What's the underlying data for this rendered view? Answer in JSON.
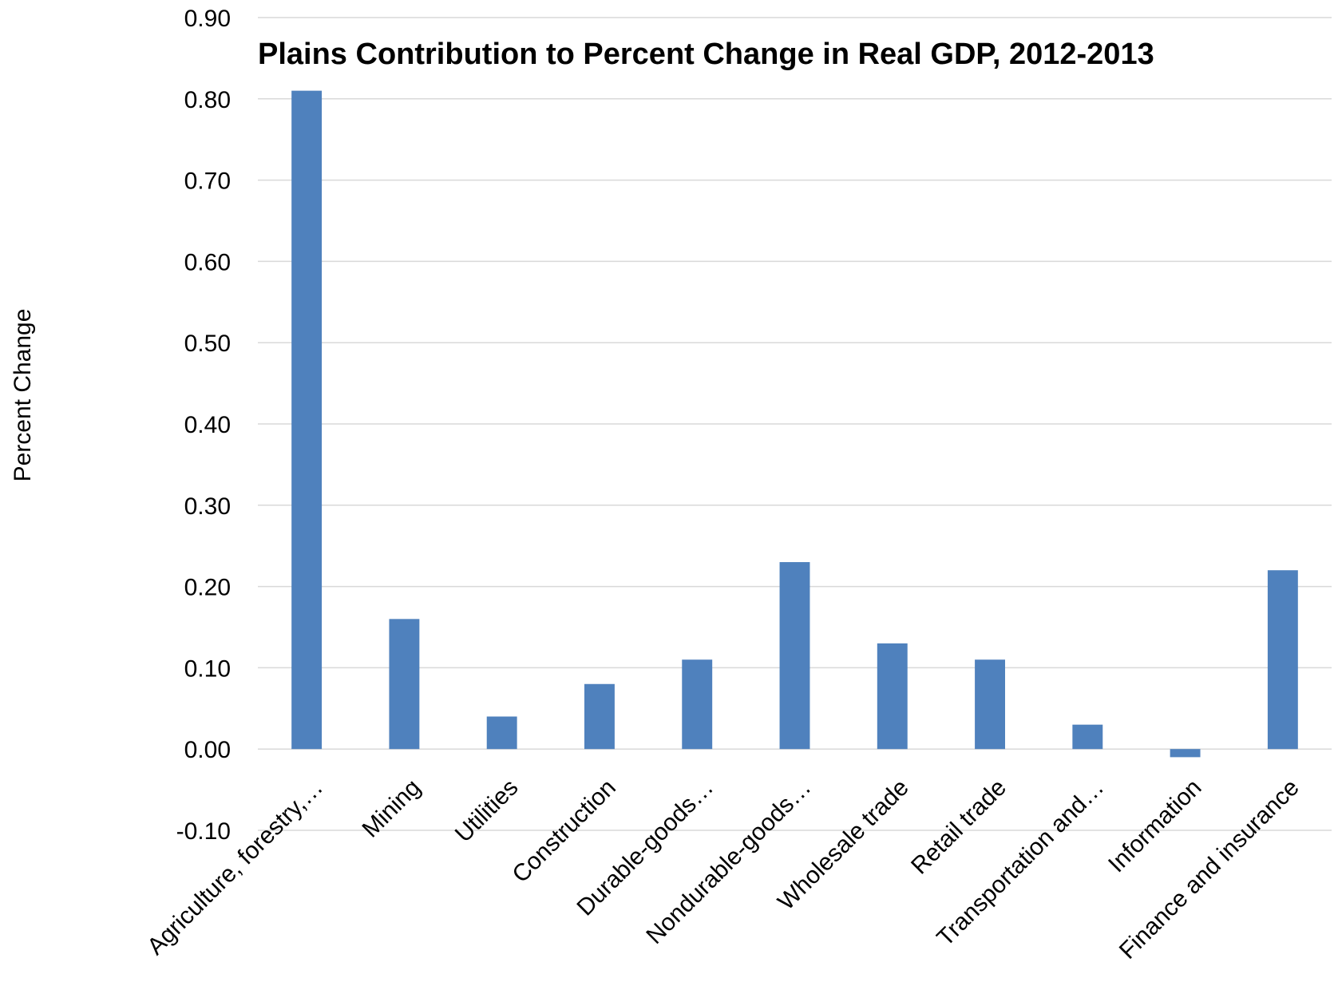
{
  "chart_data": {
    "type": "bar",
    "title": "Plains Contribution to Percent Change in Real GDP, 2012-2013",
    "xlabel": "",
    "ylabel": "Percent Change",
    "ylim": [
      -0.1,
      0.9
    ],
    "ytick_step": 0.1,
    "ytick_labels": [
      "-0.10",
      "0.00",
      "0.10",
      "0.20",
      "0.30",
      "0.40",
      "0.50",
      "0.60",
      "0.70",
      "0.80",
      "0.90"
    ],
    "grid": true,
    "legend": "none",
    "bar_color": "#4f81bd",
    "gridline_color": "#d9d9d9",
    "categories": [
      "Agriculture, forestry,…",
      "Mining",
      "Utilities",
      "Construction",
      "Durable-goods…",
      "Nondurable-goods…",
      "Wholesale trade",
      "Retail trade",
      "Transportation and…",
      "Information",
      "Finance and insurance"
    ],
    "values": [
      0.81,
      0.16,
      0.04,
      0.08,
      0.11,
      0.23,
      0.13,
      0.11,
      0.03,
      -0.01,
      0.22
    ]
  }
}
